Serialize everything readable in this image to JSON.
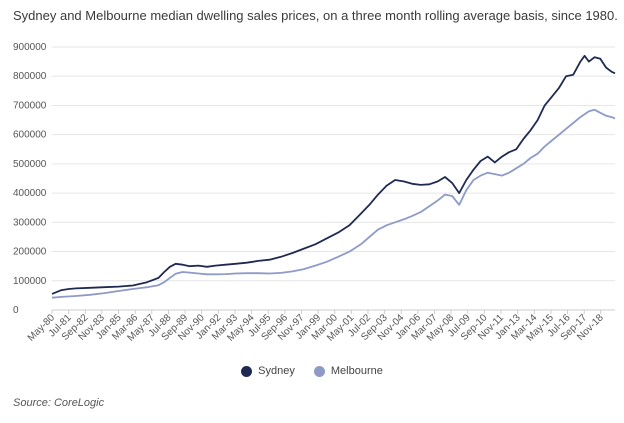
{
  "title": "Sydney and Melbourne median dwelling sales prices, on a three month rolling average basis, since 1980.",
  "source": "Source: CoreLogic",
  "colors": {
    "sydney": "#1f2a52",
    "melbourne": "#8e9ac8",
    "grid": "#e6e6e6",
    "axis": "#cccccc"
  },
  "chart_data": {
    "type": "line",
    "title": "Sydney and Melbourne median dwelling sales prices, on a three month rolling average basis, since 1980.",
    "xlabel": "",
    "ylabel": "",
    "ylim": [
      0,
      900000
    ],
    "yticks": [
      0,
      100000,
      200000,
      300000,
      400000,
      500000,
      600000,
      700000,
      800000,
      900000
    ],
    "ytick_labels": [
      "0",
      "100000",
      "200000",
      "300000",
      "400000",
      "500000",
      "600000",
      "700000",
      "800000",
      "900000"
    ],
    "xlim": [
      1980.33,
      2019.83
    ],
    "xtick_labels": [
      "May-80",
      "Jul-81",
      "Sep-82",
      "Nov-83",
      "Jan-85",
      "Mar-86",
      "May-87",
      "Jul-88",
      "Sep-89",
      "Nov-90",
      "Jan-92",
      "Mar-93",
      "May-94",
      "Jul-95",
      "Sep-96",
      "Nov-97",
      "Jan-99",
      "Mar-00",
      "May-01",
      "Jul-02",
      "Sep-03",
      "Nov-04",
      "Jan-06",
      "Mar-07",
      "May-08",
      "Jul-09",
      "Sep-10",
      "Nov-11",
      "Jan-13",
      "Mar-14",
      "May-15",
      "Jul-16",
      "Sep-17",
      "Nov-18"
    ],
    "xtick_positions": [
      1980.33,
      1981.5,
      1982.67,
      1983.83,
      1985.0,
      1986.17,
      1987.33,
      1988.5,
      1989.67,
      1990.83,
      1992.0,
      1993.17,
      1994.33,
      1995.5,
      1996.67,
      1997.83,
      1999.0,
      2000.17,
      2001.33,
      2002.5,
      2003.67,
      2004.83,
      2006.0,
      2007.17,
      2008.33,
      2009.5,
      2010.67,
      2011.83,
      2013.0,
      2014.17,
      2015.33,
      2016.5,
      2017.67,
      2018.83
    ],
    "legend": "bottom-center",
    "grid": true,
    "series": [
      {
        "name": "Sydney",
        "x": [
          1980.33,
          1981.0,
          1981.5,
          1982.0,
          1983.0,
          1984.0,
          1985.0,
          1986.0,
          1987.0,
          1987.8,
          1988.2,
          1988.6,
          1989.0,
          1989.5,
          1990.0,
          1990.6,
          1991.2,
          1991.8,
          1992.5,
          1993.2,
          1994.0,
          1994.8,
          1995.6,
          1996.4,
          1997.2,
          1998.0,
          1998.8,
          1999.6,
          2000.4,
          2001.2,
          2002.0,
          2002.6,
          2003.2,
          2003.8,
          2004.4,
          2005.0,
          2005.6,
          2006.2,
          2006.8,
          2007.4,
          2007.9,
          2008.4,
          2008.9,
          2009.4,
          2009.9,
          2010.4,
          2010.9,
          2011.4,
          2011.9,
          2012.4,
          2012.9,
          2013.4,
          2013.9,
          2014.4,
          2014.9,
          2015.4,
          2015.9,
          2016.4,
          2016.9,
          2017.4,
          2017.7,
          2018.0,
          2018.4,
          2018.8,
          2019.2,
          2019.6,
          2019.83
        ],
        "values": [
          55000,
          68000,
          72000,
          74000,
          76000,
          78000,
          80000,
          84000,
          95000,
          110000,
          130000,
          148000,
          158000,
          155000,
          150000,
          152000,
          148000,
          152000,
          155000,
          158000,
          162000,
          168000,
          172000,
          182000,
          195000,
          210000,
          225000,
          245000,
          265000,
          290000,
          330000,
          360000,
          395000,
          425000,
          445000,
          440000,
          432000,
          428000,
          430000,
          440000,
          455000,
          435000,
          400000,
          445000,
          480000,
          510000,
          525000,
          505000,
          525000,
          540000,
          550000,
          585000,
          615000,
          650000,
          700000,
          730000,
          760000,
          800000,
          805000,
          850000,
          870000,
          850000,
          865000,
          860000,
          830000,
          815000,
          810000
        ]
      },
      {
        "name": "Melbourne",
        "x": [
          1980.33,
          1981.0,
          1982.0,
          1983.0,
          1984.0,
          1985.0,
          1986.0,
          1987.0,
          1987.8,
          1988.2,
          1988.6,
          1989.0,
          1989.5,
          1990.0,
          1990.6,
          1991.2,
          1991.8,
          1992.5,
          1993.2,
          1994.0,
          1994.8,
          1995.6,
          1996.4,
          1997.2,
          1998.0,
          1998.8,
          1999.6,
          2000.4,
          2001.2,
          2002.0,
          2002.6,
          2003.2,
          2003.8,
          2004.4,
          2005.0,
          2005.6,
          2006.2,
          2006.8,
          2007.4,
          2007.9,
          2008.4,
          2008.9,
          2009.4,
          2009.9,
          2010.4,
          2010.9,
          2011.4,
          2011.9,
          2012.4,
          2012.9,
          2013.4,
          2013.9,
          2014.4,
          2014.9,
          2015.4,
          2015.9,
          2016.4,
          2016.9,
          2017.4,
          2017.7,
          2018.0,
          2018.4,
          2018.8,
          2019.2,
          2019.6,
          2019.83
        ],
        "values": [
          42000,
          45000,
          48000,
          52000,
          58000,
          65000,
          72000,
          78000,
          85000,
          95000,
          110000,
          124000,
          130000,
          128000,
          125000,
          122000,
          122000,
          123000,
          125000,
          126000,
          126000,
          125000,
          127000,
          132000,
          140000,
          152000,
          165000,
          182000,
          200000,
          225000,
          250000,
          275000,
          290000,
          300000,
          310000,
          322000,
          335000,
          355000,
          375000,
          395000,
          390000,
          360000,
          410000,
          445000,
          460000,
          470000,
          465000,
          460000,
          470000,
          485000,
          500000,
          520000,
          535000,
          560000,
          580000,
          600000,
          620000,
          640000,
          660000,
          670000,
          680000,
          685000,
          675000,
          665000,
          660000,
          655000
        ]
      }
    ]
  }
}
